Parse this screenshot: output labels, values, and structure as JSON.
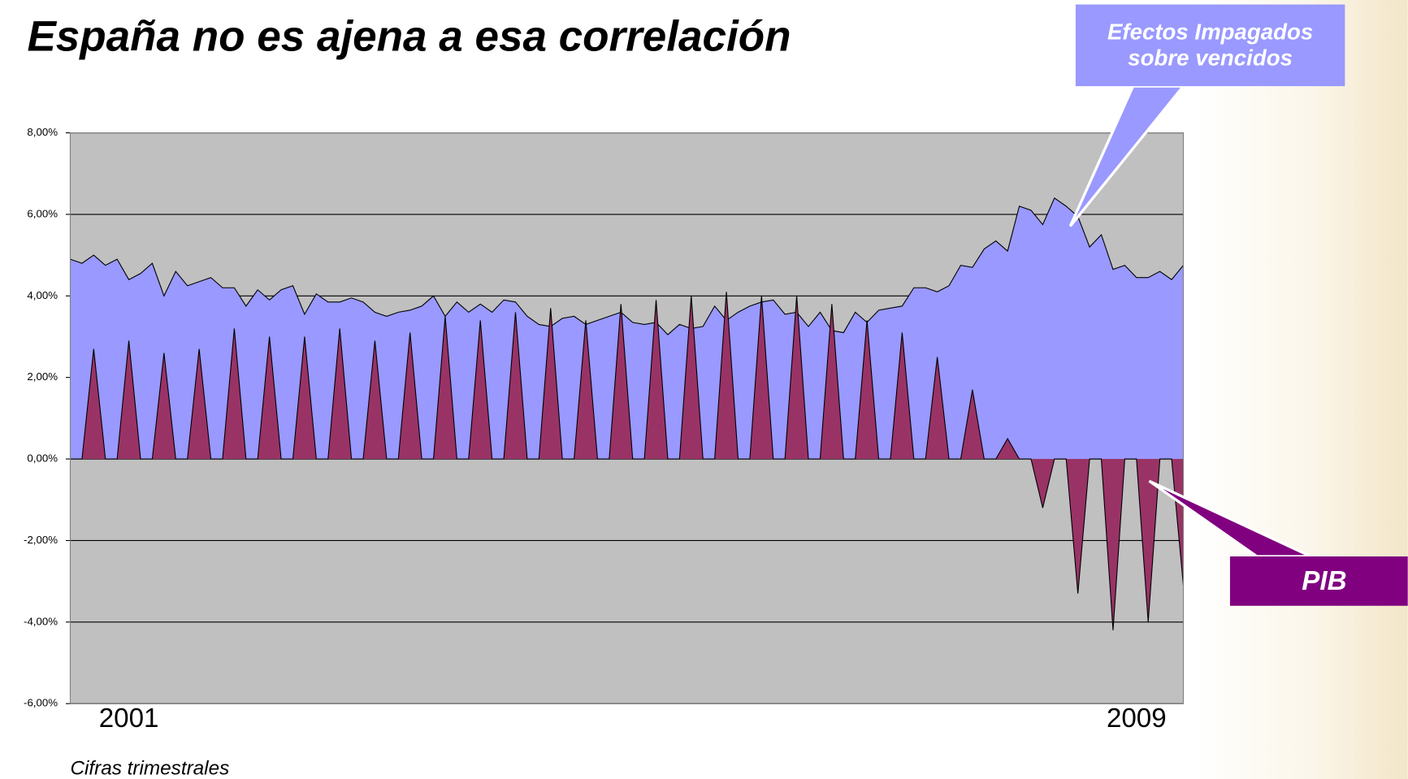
{
  "chart_data": {
    "type": "area",
    "title": "España no es ajena a esa correlación",
    "subtitle": "Cifras trimestrales",
    "categories": [
      null,
      null,
      null,
      null,
      null,
      "2001",
      null,
      null,
      null,
      null,
      null,
      null,
      null,
      null,
      null,
      null,
      null,
      null,
      null,
      null,
      null,
      null,
      null,
      null,
      null,
      null,
      null,
      null,
      null,
      null,
      null,
      null,
      null,
      null,
      null,
      null,
      null,
      null,
      null,
      null,
      null,
      null,
      null,
      null,
      null,
      null,
      null,
      null,
      null,
      null,
      null,
      null,
      null,
      null,
      null,
      null,
      null,
      null,
      null,
      null,
      null,
      null,
      null,
      null,
      null,
      null,
      null,
      null,
      null,
      null,
      null,
      null,
      null,
      null,
      null,
      null,
      null,
      null,
      null,
      null,
      null,
      null,
      null,
      null,
      null,
      null,
      null,
      null,
      null,
      null,
      null,
      "2009",
      null,
      null,
      null,
      null
    ],
    "series": [
      {
        "name": "Efectos Impagados sobre vencidos",
        "color": "#9999ff",
        "values": [
          4.9,
          4.8,
          5.0,
          4.75,
          4.9,
          4.4,
          4.55,
          4.8,
          4.0,
          4.6,
          4.25,
          4.35,
          4.45,
          4.2,
          4.2,
          3.75,
          4.15,
          3.9,
          4.15,
          4.25,
          3.55,
          4.05,
          3.85,
          3.85,
          3.95,
          3.85,
          3.6,
          3.5,
          3.6,
          3.65,
          3.75,
          4.0,
          3.5,
          3.85,
          3.6,
          3.8,
          3.6,
          3.9,
          3.85,
          3.5,
          3.3,
          3.25,
          3.45,
          3.5,
          3.3,
          3.4,
          3.5,
          3.6,
          3.35,
          3.3,
          3.35,
          3.05,
          3.3,
          3.2,
          3.25,
          3.75,
          3.4,
          3.6,
          3.75,
          3.85,
          3.9,
          3.55,
          3.6,
          3.25,
          3.6,
          3.15,
          3.1,
          3.6,
          3.35,
          3.65,
          3.7,
          3.75,
          4.2,
          4.2,
          4.1,
          4.25,
          4.75,
          4.7,
          5.15,
          5.35,
          5.1,
          6.2,
          6.1,
          5.75,
          6.4,
          6.2,
          5.95,
          5.2,
          5.5,
          4.65,
          4.75,
          4.45,
          4.45,
          4.6,
          4.4,
          4.75
        ]
      },
      {
        "name": "PIB",
        "color": "#993366",
        "values": [
          0,
          0,
          2.7,
          0,
          0,
          2.9,
          0,
          0,
          2.6,
          0,
          0,
          2.7,
          0,
          0,
          3.2,
          0,
          0,
          3.0,
          0,
          0,
          3.0,
          0,
          0,
          3.2,
          0,
          0,
          2.9,
          0,
          0,
          3.1,
          0,
          0,
          3.5,
          0,
          0,
          3.4,
          0,
          0,
          3.6,
          0,
          0,
          3.7,
          0,
          0,
          3.4,
          0,
          0,
          3.8,
          0,
          0,
          3.9,
          0,
          0,
          4.0,
          0,
          0,
          4.1,
          0,
          0,
          4.0,
          0,
          0,
          4.0,
          0,
          0,
          3.8,
          0,
          0,
          3.4,
          0,
          0,
          3.1,
          0,
          0,
          2.5,
          0,
          0,
          1.7,
          0,
          0,
          0.5,
          0,
          0,
          -1.2,
          0,
          0,
          -3.3,
          0,
          0,
          -4.2,
          0,
          0,
          -4.0,
          0,
          0,
          -3.1
        ]
      }
    ],
    "ylim": [
      -6,
      8
    ],
    "yticks": [
      {
        "value": -6,
        "label": "-6,00%"
      },
      {
        "value": -4,
        "label": "-4,00%"
      },
      {
        "value": -2,
        "label": "-2,00%"
      },
      {
        "value": 0,
        "label": "0,00%"
      },
      {
        "value": 2,
        "label": "2,00%"
      },
      {
        "value": 4,
        "label": "4,00%"
      },
      {
        "value": 6,
        "label": "6,00%"
      },
      {
        "value": 8,
        "label": "8,00%"
      }
    ],
    "grid": true,
    "plot_background": "#c0c0c0"
  }
}
